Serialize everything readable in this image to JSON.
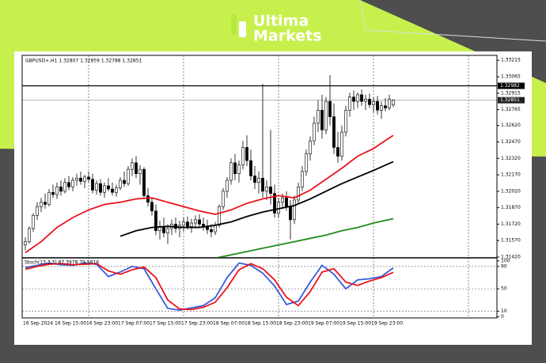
{
  "brand": {
    "line1": "Ultima",
    "line2": "Markets"
  },
  "chart_data": {
    "type": "candlestick",
    "header": "GBPUSD+,H1 1.32807 1.32859 1.32788 1.32851",
    "categories": [
      "16 Sep 2024",
      null,
      null,
      null,
      null,
      null,
      null,
      null,
      "16 Sep 15:00",
      null,
      null,
      null,
      null,
      null,
      null,
      null,
      "16 Sep 23:00",
      null,
      null,
      null,
      null,
      null,
      null,
      null,
      "17 Sep 07:00",
      null,
      null,
      null,
      null,
      null,
      null,
      null,
      "17 Sep 15:00",
      null,
      null,
      null,
      null,
      null,
      null,
      null,
      "17 Sep 23:00",
      null,
      null,
      null,
      null,
      null,
      null,
      null,
      "18 Sep 07:00",
      null,
      null,
      null,
      null,
      null,
      null,
      null,
      "18 Sep 15:00",
      null,
      null,
      null,
      null,
      null,
      null,
      null,
      "18 Sep 23:00",
      null,
      null,
      null,
      null,
      null,
      null,
      null,
      "19 Sep 07:00",
      null,
      null,
      null,
      null,
      null,
      null,
      null,
      "19 Sep 15:00",
      null,
      null,
      null,
      null,
      null,
      null,
      null,
      "19 Sep 23:00",
      null,
      null,
      null,
      null,
      null
    ],
    "open": [
      1.3153,
      1.3156,
      1.3168,
      1.318,
      1.3188,
      1.3192,
      1.319,
      1.3201,
      1.3199,
      1.3206,
      1.3202,
      1.321,
      1.3206,
      1.3212,
      1.3214,
      1.3211,
      1.3215,
      1.3213,
      1.3203,
      1.3209,
      1.3201,
      1.3207,
      1.3204,
      1.3201,
      1.3205,
      1.3212,
      1.3209,
      1.3222,
      1.3228,
      1.3218,
      1.3222,
      1.3198,
      1.3192,
      1.3184,
      1.3166,
      1.317,
      1.3164,
      1.3168,
      1.3172,
      1.3168,
      1.3171,
      1.3174,
      1.317,
      1.3173,
      1.3176,
      1.3172,
      1.317,
      1.3167,
      1.3165,
      1.3171,
      1.3188,
      1.3202,
      1.3212,
      1.3228,
      1.3218,
      1.3226,
      1.3242,
      1.323,
      1.3216,
      1.321,
      1.3214,
      1.3202,
      1.3206,
      1.32,
      1.3182,
      1.3192,
      1.3196,
      1.3188,
      1.3176,
      1.3194,
      1.3206,
      1.322,
      1.3236,
      1.3248,
      1.3264,
      1.3276,
      1.3258,
      1.3284,
      1.327,
      1.3242,
      1.3234,
      1.3256,
      1.3276,
      1.3288,
      1.3284,
      1.329,
      1.3284,
      1.3286,
      1.3281,
      1.3284,
      1.3276,
      1.328,
      1.3278,
      1.32807
    ],
    "high": [
      1.316,
      1.317,
      1.3182,
      1.3192,
      1.3196,
      1.32,
      1.3204,
      1.3208,
      1.321,
      1.3212,
      1.3214,
      1.3216,
      1.3215,
      1.3218,
      1.322,
      1.3217,
      1.322,
      1.3218,
      1.3212,
      1.3213,
      1.321,
      1.3214,
      1.321,
      1.3208,
      1.3215,
      1.322,
      1.3225,
      1.3232,
      1.3234,
      1.3226,
      1.3224,
      1.3205,
      1.3196,
      1.319,
      1.3175,
      1.3178,
      1.3172,
      1.3176,
      1.3178,
      1.3175,
      1.3178,
      1.3179,
      1.3177,
      1.318,
      1.3181,
      1.3178,
      1.3176,
      1.3172,
      1.3174,
      1.319,
      1.3205,
      1.3215,
      1.3232,
      1.3236,
      1.323,
      1.3248,
      1.3253,
      1.324,
      1.3225,
      1.322,
      1.33,
      1.3212,
      1.3258,
      1.3208,
      1.3196,
      1.32,
      1.3202,
      1.3194,
      1.3198,
      1.321,
      1.3225,
      1.324,
      1.3252,
      1.327,
      1.3285,
      1.329,
      1.3288,
      1.3308,
      1.3282,
      1.3256,
      1.3262,
      1.328,
      1.3292,
      1.3294,
      1.3292,
      1.3295,
      1.329,
      1.3291,
      1.3288,
      1.3289,
      1.3284,
      1.3287,
      1.329,
      1.32859
    ],
    "low": [
      1.3148,
      1.3154,
      1.3165,
      1.3176,
      1.3183,
      1.3186,
      1.3188,
      1.3196,
      1.3195,
      1.3198,
      1.32,
      1.3203,
      1.3202,
      1.3207,
      1.3208,
      1.3205,
      1.321,
      1.32,
      1.3199,
      1.3198,
      1.3196,
      1.3202,
      1.3198,
      1.3197,
      1.3203,
      1.3206,
      1.3207,
      1.3216,
      1.3214,
      1.3208,
      1.3195,
      1.3188,
      1.318,
      1.3162,
      1.3158,
      1.316,
      1.3154,
      1.3162,
      1.3164,
      1.316,
      1.3165,
      1.3167,
      1.3164,
      1.3168,
      1.3169,
      1.3166,
      1.3163,
      1.316,
      1.3162,
      1.3169,
      1.3185,
      1.3196,
      1.3208,
      1.3212,
      1.321,
      1.3222,
      1.3225,
      1.3212,
      1.3204,
      1.32,
      1.3196,
      1.3194,
      1.319,
      1.3178,
      1.3178,
      1.3186,
      1.3184,
      1.3158,
      1.3172,
      1.319,
      1.3202,
      1.3216,
      1.323,
      1.3244,
      1.3256,
      1.325,
      1.3254,
      1.3262,
      1.3236,
      1.3228,
      1.323,
      1.3252,
      1.327,
      1.3276,
      1.3278,
      1.328,
      1.3276,
      1.3278,
      1.3274,
      1.3272,
      1.3268,
      1.3275,
      1.3276,
      1.32788
    ],
    "close": [
      1.3156,
      1.3168,
      1.318,
      1.3188,
      1.3192,
      1.319,
      1.3201,
      1.3199,
      1.3206,
      1.3202,
      1.321,
      1.3206,
      1.3212,
      1.3214,
      1.3211,
      1.3215,
      1.3213,
      1.3203,
      1.3209,
      1.3201,
      1.3207,
      1.3204,
      1.3201,
      1.3205,
      1.3212,
      1.3209,
      1.3222,
      1.3228,
      1.3218,
      1.3222,
      1.3198,
      1.3192,
      1.3184,
      1.3166,
      1.317,
      1.3164,
      1.3168,
      1.3172,
      1.3168,
      1.3171,
      1.3174,
      1.317,
      1.3173,
      1.3176,
      1.3172,
      1.317,
      1.3167,
      1.3165,
      1.3171,
      1.3188,
      1.3202,
      1.3212,
      1.3228,
      1.3218,
      1.3226,
      1.3242,
      1.323,
      1.3216,
      1.321,
      1.3214,
      1.3202,
      1.3206,
      1.32,
      1.3182,
      1.3192,
      1.3196,
      1.3188,
      1.3176,
      1.3194,
      1.3206,
      1.322,
      1.3236,
      1.3248,
      1.3264,
      1.3276,
      1.3258,
      1.3284,
      1.327,
      1.3242,
      1.3234,
      1.3256,
      1.3276,
      1.3288,
      1.3284,
      1.329,
      1.3284,
      1.3286,
      1.3281,
      1.3284,
      1.3276,
      1.328,
      1.3278,
      1.3286,
      1.32851
    ],
    "up_color": "#ffffff",
    "down_color": "#000000",
    "moving_averages": [
      {
        "color": "#e8141c",
        "x": [
          0,
          4,
          8,
          12,
          16,
          20,
          24,
          28,
          32,
          36,
          40,
          44,
          48,
          52,
          56,
          60,
          64,
          68,
          72,
          76,
          80,
          84,
          88,
          93
        ],
        "values": [
          1.3146,
          1.3156,
          1.3169,
          1.3178,
          1.3185,
          1.319,
          1.3192,
          1.3195,
          1.3196,
          1.3192,
          1.3188,
          1.3184,
          1.3181,
          1.3185,
          1.3191,
          1.3195,
          1.3198,
          1.3196,
          1.3203,
          1.3213,
          1.3223,
          1.3234,
          1.3241,
          1.3253
        ]
      },
      {
        "color": "#000000",
        "x": [
          24,
          28,
          32,
          36,
          40,
          44,
          48,
          52,
          56,
          60,
          64,
          68,
          72,
          76,
          80,
          84,
          88,
          93
        ],
        "values": [
          1.3161,
          1.3166,
          1.3169,
          1.317,
          1.3169,
          1.3169,
          1.3171,
          1.3174,
          1.3179,
          1.3183,
          1.3186,
          1.3189,
          1.3195,
          1.3202,
          1.3209,
          1.3215,
          1.3221,
          1.3229
        ]
      },
      {
        "color": "#1e8c1e",
        "x": [
          48,
          52,
          56,
          60,
          64,
          68,
          72,
          76,
          80,
          84,
          88,
          93
        ],
        "values": [
          1.3141,
          1.3144,
          1.3147,
          1.315,
          1.3153,
          1.3156,
          1.3159,
          1.3162,
          1.3166,
          1.3169,
          1.3173,
          1.3177
        ]
      }
    ],
    "hline": 1.32982,
    "current_price": 1.32851,
    "xlim": [
      -0.8,
      119.2
    ],
    "xgrid": [
      16,
      40,
      64,
      88,
      112
    ],
    "ylim": [
      1.3142,
      1.3326
    ],
    "yticks": [
      1.33215,
      1.33065,
      1.32915,
      1.32765,
      {
        "value": 1.3262,
        "label": "1.32620"
      },
      {
        "value": 1.3247,
        "label": "1.32470"
      },
      {
        "value": 1.3232,
        "label": "1.32320"
      },
      {
        "value": 1.3217,
        "label": "1.32170"
      },
      {
        "value": 1.3202,
        "label": "1.32020"
      },
      {
        "value": 1.3187,
        "label": "1.31870"
      },
      {
        "value": 1.3172,
        "label": "1.31720"
      },
      {
        "value": 1.3157,
        "label": "1.31570"
      },
      {
        "value": 1.3142,
        "label": "1.31420"
      }
    ],
    "oscillator": {
      "title": "Stoch(13,3,3) 87.3978 79.5816",
      "ylim": [
        -2,
        104
      ],
      "yticks": [
        0,
        10,
        50,
        90,
        100
      ],
      "levels": [
        10,
        50,
        90
      ],
      "series": [
        {
          "color": "#3a5bd9",
          "x": [
            0,
            3,
            6,
            9,
            12,
            15,
            18,
            21,
            24,
            27,
            30,
            33,
            36,
            39,
            42,
            45,
            48,
            51,
            54,
            57,
            60,
            63,
            66,
            69,
            72,
            75,
            78,
            81,
            84,
            87,
            90,
            93
          ],
          "values": [
            88,
            92,
            96,
            93,
            92,
            96,
            94,
            72,
            80,
            90,
            86,
            50,
            15,
            12,
            16,
            20,
            34,
            70,
            96,
            92,
            78,
            55,
            22,
            28,
            62,
            92,
            76,
            50,
            66,
            68,
            72,
            87.3978
          ]
        },
        {
          "color": "#e8141c",
          "x": [
            0,
            3,
            6,
            9,
            12,
            15,
            18,
            21,
            24,
            27,
            30,
            33,
            36,
            39,
            42,
            45,
            48,
            51,
            54,
            57,
            60,
            63,
            66,
            69,
            72,
            75,
            78,
            81,
            84,
            87,
            90,
            93
          ],
          "values": [
            85,
            90,
            94,
            95,
            93,
            94,
            95,
            82,
            76,
            84,
            89,
            70,
            30,
            14,
            13,
            17,
            26,
            52,
            84,
            95,
            86,
            66,
            35,
            20,
            45,
            80,
            86,
            62,
            56,
            64,
            70,
            79.5816
          ]
        }
      ]
    }
  }
}
